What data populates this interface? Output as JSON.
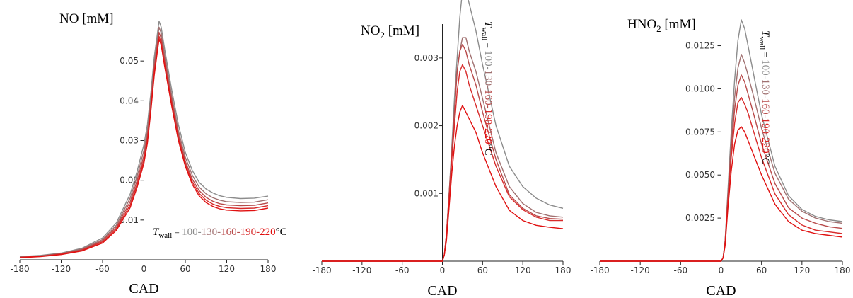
{
  "colors": [
    "#8c8c8c",
    "#a07070",
    "#b84a4a",
    "#d82a2a",
    "#e01010"
  ],
  "chart_data": [
    {
      "type": "line",
      "ylabel_main": "NO",
      "ylabel_sub": "",
      "ylabel_unit": " [mM]",
      "xlabel": "CAD",
      "xlim": [
        -180,
        180
      ],
      "ylim": [
        0,
        0.06
      ],
      "xticks": [
        "-180",
        "-120",
        "-60",
        "0",
        "60",
        "120",
        "180"
      ],
      "yticks": [
        "0.01",
        "0.02",
        "0.03",
        "0.04",
        "0.05"
      ],
      "yticks_values": [
        0.01,
        0.02,
        0.03,
        0.04,
        0.05
      ],
      "legend": {
        "prefix_main": "T",
        "prefix_sub": "wall",
        "prefix_eq": " = ",
        "values": [
          "100",
          "130",
          "160",
          "190",
          "220"
        ],
        "unit": "°C",
        "orientation": "horizontal"
      },
      "series": [
        {
          "x": [
            -180,
            -150,
            -120,
            -90,
            -60,
            -40,
            -20,
            -10,
            0,
            5,
            10,
            15,
            20,
            22,
            25,
            30,
            40,
            50,
            60,
            70,
            80,
            90,
            100,
            110,
            120,
            140,
            160,
            180
          ],
          "y": [
            0.0008,
            0.0011,
            0.0017,
            0.0029,
            0.0055,
            0.0093,
            0.0165,
            0.0222,
            0.029,
            0.034,
            0.042,
            0.051,
            0.0575,
            0.06,
            0.0585,
            0.053,
            0.043,
            0.034,
            0.027,
            0.0225,
            0.0195,
            0.0178,
            0.0168,
            0.0161,
            0.0157,
            0.0154,
            0.0155,
            0.016
          ]
        },
        {
          "x": [
            -180,
            -150,
            -120,
            -90,
            -60,
            -40,
            -20,
            -10,
            0,
            5,
            10,
            15,
            20,
            22,
            25,
            30,
            40,
            50,
            60,
            70,
            80,
            90,
            100,
            110,
            120,
            140,
            160,
            180
          ],
          "y": [
            0.0007,
            0.001,
            0.0016,
            0.0027,
            0.0051,
            0.0087,
            0.0155,
            0.021,
            0.0275,
            0.0325,
            0.0405,
            0.0495,
            0.056,
            0.0585,
            0.057,
            0.0515,
            0.0415,
            0.0325,
            0.0258,
            0.0213,
            0.0183,
            0.0166,
            0.0156,
            0.015,
            0.0146,
            0.0144,
            0.0145,
            0.0151
          ]
        },
        {
          "x": [
            -180,
            -150,
            -120,
            -90,
            -60,
            -40,
            -20,
            -10,
            0,
            5,
            10,
            15,
            20,
            22,
            25,
            30,
            40,
            50,
            60,
            70,
            80,
            90,
            100,
            110,
            120,
            140,
            160,
            180
          ],
          "y": [
            0.0006,
            0.0009,
            0.0015,
            0.0025,
            0.0048,
            0.0082,
            0.0146,
            0.0199,
            0.0262,
            0.0312,
            0.0392,
            0.0482,
            0.0548,
            0.0572,
            0.0557,
            0.0502,
            0.0404,
            0.0315,
            0.0248,
            0.0203,
            0.0174,
            0.0157,
            0.0147,
            0.0141,
            0.0138,
            0.0136,
            0.0137,
            0.0143
          ]
        },
        {
          "x": [
            -180,
            -150,
            -120,
            -90,
            -60,
            -40,
            -20,
            -10,
            0,
            5,
            10,
            15,
            20,
            22,
            25,
            30,
            40,
            50,
            60,
            70,
            80,
            90,
            100,
            110,
            120,
            140,
            160,
            180
          ],
          "y": [
            0.0006,
            0.0009,
            0.0014,
            0.0024,
            0.0045,
            0.0078,
            0.0138,
            0.019,
            0.0252,
            0.0302,
            0.0382,
            0.0472,
            0.0538,
            0.0562,
            0.0547,
            0.0493,
            0.0396,
            0.0307,
            0.0241,
            0.0196,
            0.0167,
            0.015,
            0.014,
            0.0134,
            0.0131,
            0.0129,
            0.013,
            0.0136
          ]
        },
        {
          "x": [
            -180,
            -150,
            -120,
            -90,
            -60,
            -40,
            -20,
            -10,
            0,
            5,
            10,
            15,
            20,
            22,
            25,
            30,
            40,
            50,
            60,
            70,
            80,
            90,
            100,
            110,
            120,
            140,
            160,
            180
          ],
          "y": [
            0.0005,
            0.0008,
            0.0013,
            0.0022,
            0.0042,
            0.0074,
            0.0131,
            0.0182,
            0.0243,
            0.0293,
            0.0374,
            0.0464,
            0.053,
            0.0555,
            0.054,
            0.0486,
            0.0389,
            0.03,
            0.0235,
            0.019,
            0.0161,
            0.0144,
            0.0134,
            0.0128,
            0.0125,
            0.0123,
            0.0124,
            0.013
          ]
        }
      ]
    },
    {
      "type": "line",
      "ylabel_main": "NO",
      "ylabel_sub": "2",
      "ylabel_unit": " [mM]",
      "xlabel": "CAD",
      "xlim": [
        -180,
        180
      ],
      "ylim": [
        0,
        0.0035
      ],
      "xticks": [
        "-180",
        "-120",
        "-60",
        "0",
        "60",
        "120",
        "180"
      ],
      "yticks": [
        "0.001",
        "0.002",
        "0.003"
      ],
      "yticks_values": [
        0.001,
        0.002,
        0.003
      ],
      "legend": {
        "prefix_main": "T",
        "prefix_sub": "wall",
        "prefix_eq": " = ",
        "values": [
          "100",
          "130",
          "160",
          "190",
          "220"
        ],
        "unit": "°C",
        "orientation": "vertical"
      },
      "series": [
        {
          "x": [
            -180,
            -100,
            -20,
            0,
            3,
            6,
            10,
            14,
            18,
            22,
            26,
            30,
            35,
            40,
            50,
            60,
            80,
            100,
            120,
            140,
            160,
            180
          ],
          "y": [
            0,
            0,
            0,
            0,
            0.0001,
            0.0004,
            0.001,
            0.0017,
            0.0024,
            0.003,
            0.0036,
            0.004,
            0.004,
            0.0038,
            0.0034,
            0.0029,
            0.002,
            0.0014,
            0.0011,
            0.00093,
            0.00083,
            0.00078
          ]
        },
        {
          "x": [
            -180,
            -100,
            -20,
            0,
            3,
            6,
            10,
            14,
            18,
            22,
            26,
            30,
            35,
            40,
            50,
            60,
            80,
            100,
            120,
            140,
            160,
            180
          ],
          "y": [
            0,
            0,
            0,
            0,
            0.0001,
            0.0004,
            0.001,
            0.0016,
            0.0022,
            0.0028,
            0.0031,
            0.0033,
            0.0033,
            0.0031,
            0.0028,
            0.0024,
            0.0016,
            0.0011,
            0.00085,
            0.00072,
            0.00067,
            0.00065
          ]
        },
        {
          "x": [
            -180,
            -100,
            -20,
            0,
            3,
            6,
            10,
            14,
            18,
            22,
            26,
            30,
            35,
            40,
            50,
            60,
            80,
            100,
            120,
            140,
            160,
            180
          ],
          "y": [
            0,
            0,
            0,
            0,
            0.0001,
            0.0004,
            0.001,
            0.0016,
            0.0022,
            0.0028,
            0.0031,
            0.0032,
            0.0031,
            0.0029,
            0.0026,
            0.0022,
            0.0015,
            0.00098,
            0.00078,
            0.00067,
            0.00063,
            0.00062
          ]
        },
        {
          "x": [
            -180,
            -100,
            -20,
            0,
            3,
            6,
            10,
            14,
            18,
            22,
            26,
            30,
            35,
            40,
            50,
            60,
            80,
            100,
            120,
            140,
            160,
            180
          ],
          "y": [
            0,
            0,
            0,
            0,
            0.0001,
            0.0004,
            0.0009,
            0.0015,
            0.002,
            0.0025,
            0.0028,
            0.0029,
            0.0028,
            0.0026,
            0.0023,
            0.002,
            0.0014,
            0.00095,
            0.00076,
            0.00065,
            0.0006,
            0.0006
          ]
        },
        {
          "x": [
            -180,
            -100,
            -20,
            0,
            3,
            6,
            10,
            14,
            18,
            22,
            26,
            30,
            35,
            40,
            50,
            60,
            80,
            100,
            120,
            140,
            160,
            180
          ],
          "y": [
            0,
            0,
            0,
            0,
            0.0001,
            0.0003,
            0.0008,
            0.0013,
            0.0017,
            0.002,
            0.0022,
            0.0023,
            0.0022,
            0.0021,
            0.0019,
            0.0016,
            0.0011,
            0.00075,
            0.0006,
            0.00053,
            0.0005,
            0.00048
          ]
        }
      ]
    },
    {
      "type": "line",
      "ylabel_main": "HNO",
      "ylabel_sub": "2",
      "ylabel_unit": " [mM]",
      "xlabel": "CAD",
      "xlim": [
        -180,
        180
      ],
      "ylim": [
        0,
        0.014
      ],
      "xticks": [
        "-180",
        "-120",
        "-60",
        "0",
        "60",
        "120",
        "180"
      ],
      "yticks": [
        "0.0025",
        "0.0050",
        "0.0075",
        "0.0100",
        "0.0125"
      ],
      "yticks_values": [
        0.0025,
        0.005,
        0.0075,
        0.01,
        0.0125
      ],
      "legend": {
        "prefix_main": "T",
        "prefix_sub": "wall",
        "prefix_eq": " = ",
        "values": [
          "100",
          "130",
          "160",
          "190",
          "220"
        ],
        "unit": "°C",
        "orientation": "vertical"
      },
      "series": [
        {
          "x": [
            -180,
            -100,
            -20,
            0,
            3,
            6,
            10,
            15,
            20,
            25,
            30,
            35,
            40,
            50,
            60,
            80,
            100,
            120,
            140,
            160,
            180
          ],
          "y": [
            0,
            0,
            0,
            0,
            0.0002,
            0.0012,
            0.004,
            0.0075,
            0.0105,
            0.0128,
            0.014,
            0.0135,
            0.0125,
            0.0105,
            0.0085,
            0.0055,
            0.0038,
            0.003,
            0.0026,
            0.0024,
            0.0023
          ]
        },
        {
          "x": [
            -180,
            -100,
            -20,
            0,
            3,
            6,
            10,
            15,
            20,
            25,
            30,
            35,
            40,
            50,
            60,
            80,
            100,
            120,
            140,
            160,
            180
          ],
          "y": [
            0,
            0,
            0,
            0,
            0.0002,
            0.0012,
            0.0038,
            0.007,
            0.0095,
            0.0112,
            0.012,
            0.0115,
            0.0108,
            0.0093,
            0.0077,
            0.0051,
            0.0036,
            0.0029,
            0.0025,
            0.0023,
            0.0022
          ]
        },
        {
          "x": [
            -180,
            -100,
            -20,
            0,
            3,
            6,
            10,
            15,
            20,
            25,
            30,
            35,
            40,
            50,
            60,
            80,
            100,
            120,
            140,
            160,
            180
          ],
          "y": [
            0,
            0,
            0,
            0,
            0.0002,
            0.0011,
            0.0036,
            0.0065,
            0.0088,
            0.0102,
            0.0108,
            0.0104,
            0.0097,
            0.0083,
            0.0068,
            0.0045,
            0.0031,
            0.0025,
            0.0022,
            0.002,
            0.0019
          ]
        },
        {
          "x": [
            -180,
            -100,
            -20,
            0,
            3,
            6,
            10,
            15,
            20,
            25,
            30,
            35,
            40,
            50,
            60,
            80,
            100,
            120,
            140,
            160,
            180
          ],
          "y": [
            0,
            0,
            0,
            0,
            0.0002,
            0.0011,
            0.0034,
            0.006,
            0.008,
            0.0092,
            0.0095,
            0.0091,
            0.0086,
            0.0073,
            0.006,
            0.0039,
            0.0027,
            0.0021,
            0.0018,
            0.0017,
            0.0016
          ]
        },
        {
          "x": [
            -180,
            -100,
            -20,
            0,
            3,
            6,
            10,
            15,
            20,
            25,
            30,
            35,
            40,
            50,
            60,
            80,
            100,
            120,
            140,
            160,
            180
          ],
          "y": [
            0,
            0,
            0,
            0,
            0.0002,
            0.0009,
            0.003,
            0.0052,
            0.0068,
            0.0076,
            0.0078,
            0.0075,
            0.007,
            0.006,
            0.005,
            0.0033,
            0.0023,
            0.0018,
            0.0016,
            0.0015,
            0.0014
          ]
        }
      ]
    }
  ]
}
